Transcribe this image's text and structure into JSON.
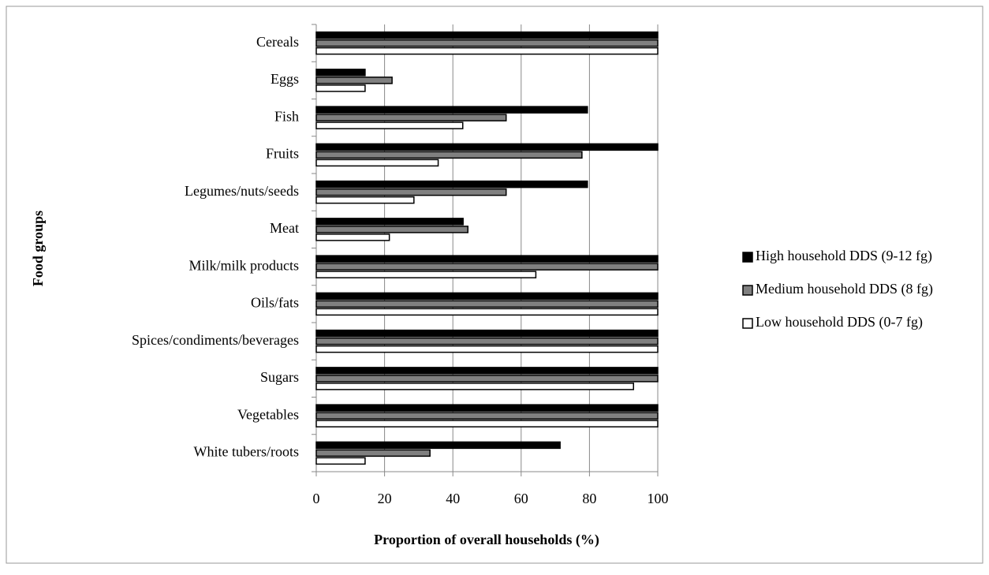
{
  "chart_data": {
    "type": "barh",
    "xlabel": "Proportion of overall households (%)",
    "ylabel": "Food groups",
    "categories": [
      "Cereals",
      "Eggs",
      "Fish",
      "Fruits",
      "Legumes/nuts/seeds",
      "Meat",
      "Milk/milk products",
      "Oils/fats",
      "Spices/condiments/beverages",
      "Sugars",
      "Vegetables",
      "White tubers/roots"
    ],
    "series": [
      {
        "name": "High household DDS (9-12 fg)",
        "color": "#000000",
        "values": [
          100,
          14.3,
          79.4,
          100,
          79.4,
          43,
          100,
          100,
          100,
          100,
          100,
          71.4
        ]
      },
      {
        "name": "Medium household DDS (8 fg)",
        "color": "#808080",
        "values": [
          100,
          22.2,
          55.6,
          77.8,
          55.6,
          44.4,
          100,
          100,
          100,
          100,
          100,
          33.3
        ]
      },
      {
        "name": "Low household DDS (0-7 fg)",
        "color": "#ffffff",
        "values": [
          100,
          14.3,
          42.9,
          35.7,
          28.6,
          21.4,
          64.3,
          100,
          100,
          92.9,
          100,
          14.3
        ]
      }
    ],
    "xlim": [
      0,
      100
    ],
    "xticks": [
      0,
      20,
      40,
      60,
      80,
      100
    ],
    "grid": true,
    "legend": "right"
  }
}
